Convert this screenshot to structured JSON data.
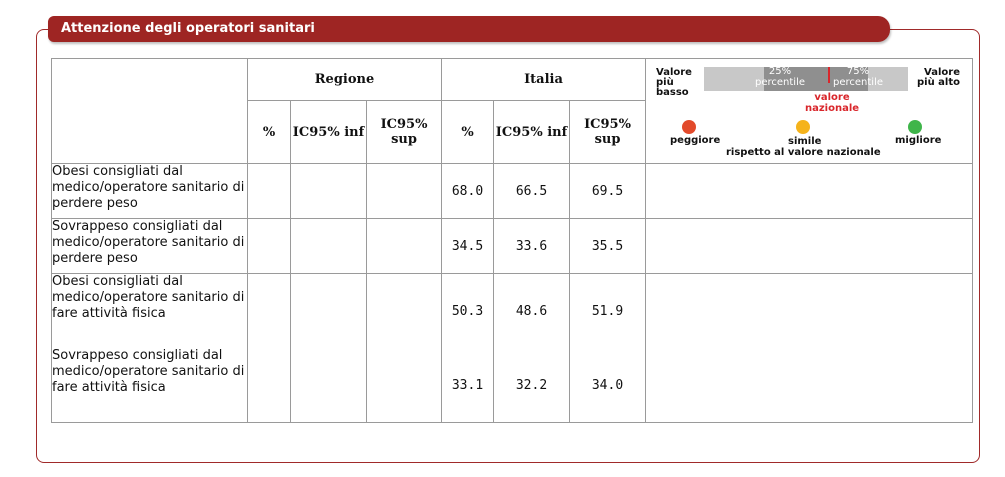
{
  "section": {
    "title": "Attenzione degli operatori sanitari"
  },
  "table": {
    "group_headers": {
      "regione": "Regione",
      "italia": "Italia"
    },
    "sub_headers": {
      "pct": "%",
      "ic_inf": "IC95% inf",
      "ic_sup": "IC95% sup"
    },
    "rows": [
      {
        "label": "Obesi consigliati dal medico/operatore sanitario di perdere peso",
        "regione_pct": "",
        "regione_inf": "",
        "regione_sup": "",
        "italia_pct": "68.0",
        "italia_inf": "66.5",
        "italia_sup": "69.5"
      },
      {
        "label": "Sovrappeso consigliati dal medico/operatore sanitario di perdere peso",
        "regione_pct": "",
        "regione_inf": "",
        "regione_sup": "",
        "italia_pct": "34.5",
        "italia_inf": "33.6",
        "italia_sup": "35.5"
      },
      {
        "label": "Obesi consigliati dal medico/operatore sanitario di fare attività fisica",
        "regione_pct": "",
        "regione_inf": "",
        "regione_sup": "",
        "italia_pct": "50.3",
        "italia_inf": "48.6",
        "italia_sup": "51.9"
      },
      {
        "label": "Sovrappeso consigliati dal medico/operatore sanitario di fare attività fisica",
        "regione_pct": "",
        "regione_inf": "",
        "regione_sup": "",
        "italia_pct": "33.1",
        "italia_inf": "32.2",
        "italia_sup": "34.0"
      }
    ]
  },
  "legend": {
    "low": "Valore più basso",
    "high": "Valore più alto",
    "p25": "25% percentile",
    "p75": "75% percentile",
    "national": "valore nazionale",
    "worse": "peggiore",
    "similar": "simile",
    "better": "migliore",
    "reference": "rispetto al valore nazionale",
    "colors": {
      "worse": "#e24a2b",
      "similar": "#f5b31b",
      "better": "#3fb54a",
      "national_line": "#d9262b"
    }
  }
}
